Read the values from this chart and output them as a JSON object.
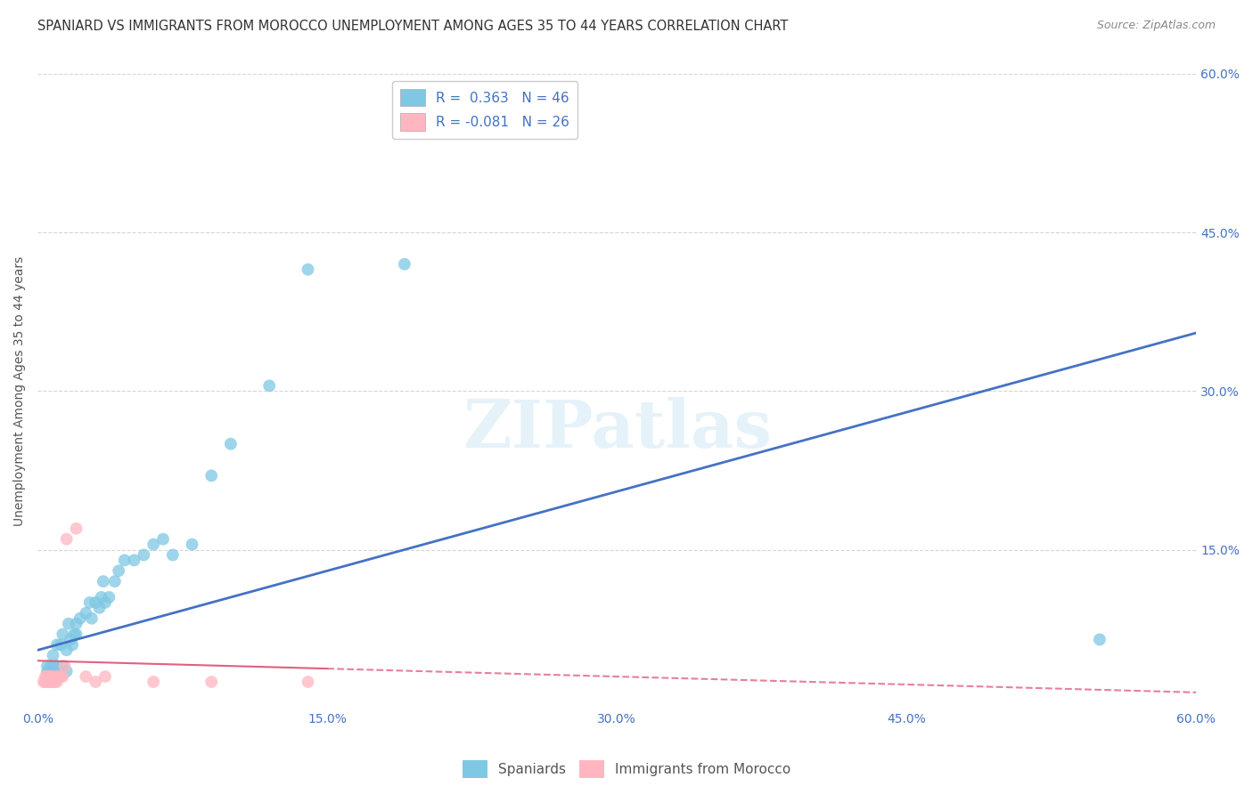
{
  "title": "SPANIARD VS IMMIGRANTS FROM MOROCCO UNEMPLOYMENT AMONG AGES 35 TO 44 YEARS CORRELATION CHART",
  "source": "Source: ZipAtlas.com",
  "ylabel": "Unemployment Among Ages 35 to 44 years",
  "xlim": [
    0.0,
    0.6
  ],
  "ylim": [
    0.0,
    0.6
  ],
  "xtick_labels": [
    "0.0%",
    "",
    "",
    "",
    "15.0%",
    "",
    "",
    "",
    "30.0%",
    "",
    "",
    "",
    "45.0%",
    "",
    "",
    "",
    "60.0%"
  ],
  "xtick_vals": [
    0.0,
    0.0375,
    0.075,
    0.1125,
    0.15,
    0.1875,
    0.225,
    0.2625,
    0.3,
    0.3375,
    0.375,
    0.4125,
    0.45,
    0.4875,
    0.525,
    0.5625,
    0.6
  ],
  "ytick_vals": [
    0.0,
    0.15,
    0.3,
    0.45,
    0.6
  ],
  "ytick_labels_right": [
    "",
    "15.0%",
    "30.0%",
    "45.0%",
    "60.0%"
  ],
  "blue_R": "0.363",
  "blue_N": "46",
  "pink_R": "-0.081",
  "pink_N": "26",
  "blue_color": "#7ec8e3",
  "pink_color": "#ffb6c1",
  "blue_line_color": "#4472c4",
  "pink_line_color": "#e06080",
  "background_color": "#ffffff",
  "grid_color": "#cccccc",
  "watermark": "ZIPatlas",
  "spaniards_x": [
    0.005,
    0.005,
    0.007,
    0.007,
    0.008,
    0.008,
    0.01,
    0.01,
    0.01,
    0.012,
    0.012,
    0.013,
    0.013,
    0.015,
    0.015,
    0.016,
    0.017,
    0.018,
    0.019,
    0.02,
    0.02,
    0.022,
    0.025,
    0.027,
    0.028,
    0.03,
    0.032,
    0.033,
    0.034,
    0.035,
    0.037,
    0.04,
    0.042,
    0.045,
    0.05,
    0.055,
    0.06,
    0.065,
    0.07,
    0.08,
    0.09,
    0.1,
    0.12,
    0.14,
    0.19,
    0.55
  ],
  "spaniards_y": [
    0.035,
    0.04,
    0.035,
    0.04,
    0.04,
    0.05,
    0.035,
    0.04,
    0.06,
    0.035,
    0.06,
    0.04,
    0.07,
    0.035,
    0.055,
    0.08,
    0.065,
    0.06,
    0.07,
    0.07,
    0.08,
    0.085,
    0.09,
    0.1,
    0.085,
    0.1,
    0.095,
    0.105,
    0.12,
    0.1,
    0.105,
    0.12,
    0.13,
    0.14,
    0.14,
    0.145,
    0.155,
    0.16,
    0.145,
    0.155,
    0.22,
    0.25,
    0.305,
    0.415,
    0.42,
    0.065
  ],
  "morocco_x": [
    0.003,
    0.004,
    0.004,
    0.005,
    0.005,
    0.006,
    0.006,
    0.007,
    0.007,
    0.008,
    0.008,
    0.009,
    0.01,
    0.01,
    0.011,
    0.012,
    0.013,
    0.014,
    0.015,
    0.02,
    0.025,
    0.03,
    0.035,
    0.06,
    0.09,
    0.14
  ],
  "morocco_y": [
    0.025,
    0.025,
    0.03,
    0.025,
    0.03,
    0.025,
    0.03,
    0.025,
    0.03,
    0.025,
    0.03,
    0.025,
    0.025,
    0.03,
    0.03,
    0.03,
    0.03,
    0.04,
    0.16,
    0.17,
    0.03,
    0.025,
    0.03,
    0.025,
    0.025,
    0.025
  ],
  "blue_line_x0": 0.0,
  "blue_line_y0": 0.055,
  "blue_line_x1": 0.6,
  "blue_line_y1": 0.355,
  "pink_line_x0": 0.0,
  "pink_line_y0": 0.045,
  "pink_line_x1": 0.6,
  "pink_line_y1": 0.015
}
